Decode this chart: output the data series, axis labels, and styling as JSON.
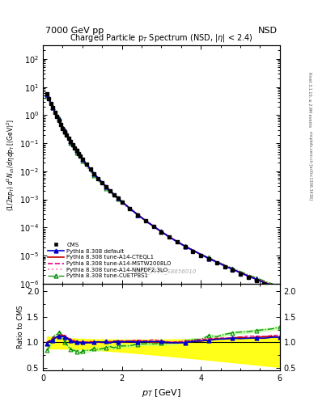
{
  "title_top": "7000 GeV pp",
  "title_top_right": "NSD",
  "title_main": "Charged Particle p$_T$ Spectrum (NSD, |$\\eta$| < 2.4)",
  "xlabel": "$p_T$ [GeV]",
  "ylabel_main": "$(1/2\\pi p_T)\\, d^2N_{ch}/d\\eta\\, dp_T\\, [{\\rm (GeV)}^2]$",
  "ylabel_ratio": "Ratio to CMS",
  "watermark": "CMS_2010_S8656010",
  "right_label_bottom": "mcplots.cern.ch [arXiv:1306.3436]",
  "right_label_top": "Rivet 3.1.10, ≥ 2.9M events",
  "xlim": [
    0,
    6.0
  ],
  "ylim_main": [
    1e-06,
    300
  ],
  "ylim_ratio": [
    0.45,
    2.15
  ],
  "ratio_yticks": [
    0.5,
    1.0,
    1.5,
    2.0
  ],
  "colors": {
    "cms": "#000000",
    "default": "#0000cc",
    "cteql1": "#cc0000",
    "mstw": "#ee0088",
    "nnpdf": "#ff88bb",
    "cuetp8s1": "#008800",
    "band_yellow": "#ffff00",
    "band_green": "#aaff88"
  }
}
